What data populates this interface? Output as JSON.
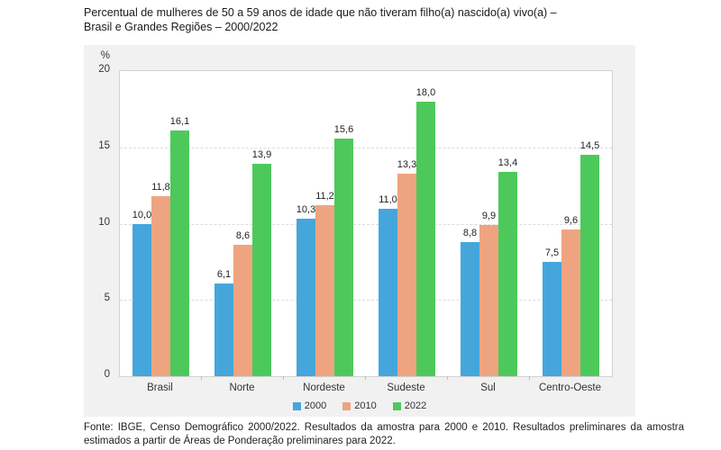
{
  "page": {
    "title_line1": "Percentual de mulheres de 50 a 59 anos de idade que não tiveram filho(a) nascido(a) vivo(a) –",
    "title_line2": "Brasil e Grandes Regiões – 2000/2022",
    "source_text": "Fonte: IBGE, Censo Demográfico 2000/2022. Resultados da amostra para 2000 e 2010. Resultados preliminares da amostra estimados a partir de Áreas de Ponderação preliminares para 2022."
  },
  "chart_data": {
    "type": "bar",
    "title": "Percentual de mulheres de 50 a 59 anos de idade que não tiveram filho(a) nascido(a) vivo(a) – Brasil e Grandes Regiões – 2000/2022",
    "unit_label": "%",
    "categories": [
      "Brasil",
      "Norte",
      "Nordeste",
      "Sudeste",
      "Sul",
      "Centro-Oeste"
    ],
    "series": [
      {
        "name": "2000",
        "color": "#45a6dc",
        "values": [
          10.0,
          6.1,
          10.3,
          11.0,
          8.8,
          7.5
        ]
      },
      {
        "name": "2010",
        "color": "#eea480",
        "values": [
          11.8,
          8.6,
          11.2,
          13.3,
          9.9,
          9.6
        ]
      },
      {
        "name": "2022",
        "color": "#4dc95b",
        "values": [
          16.1,
          13.9,
          15.6,
          18.0,
          13.4,
          14.5
        ]
      }
    ],
    "ylim": [
      0,
      20
    ],
    "yticks": [
      0,
      5,
      10,
      15,
      20
    ],
    "grid": "horizontal-dashed",
    "legend_position": "bottom",
    "value_label_format": "comma-decimal-1",
    "colors": {
      "panel_background": "#f1f1f1",
      "plot_background": "#ffffff",
      "grid_color": "#dcdcdc",
      "border_color": "#d2d2d2",
      "text_color": "#333333"
    }
  }
}
